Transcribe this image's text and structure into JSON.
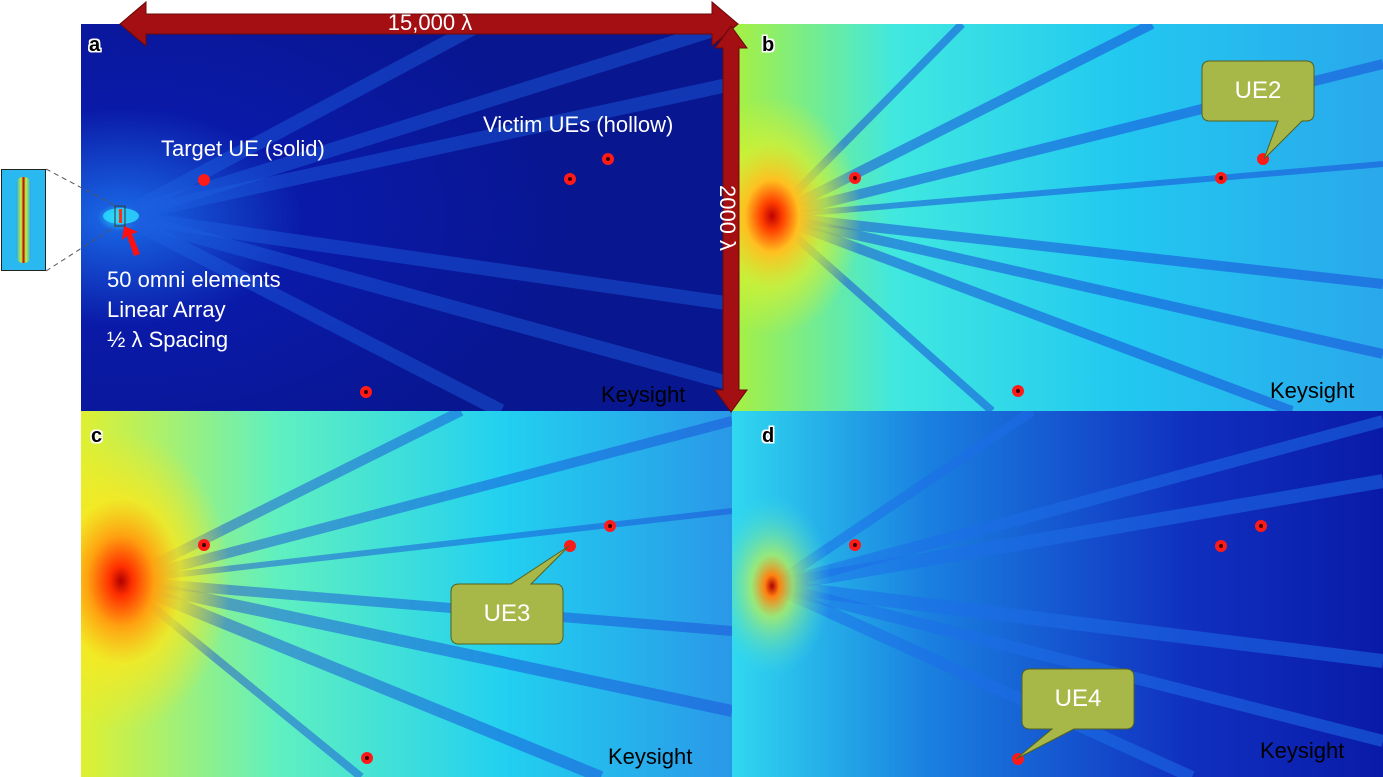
{
  "panels": {
    "a": {
      "label": "a",
      "watermark": "Keysight"
    },
    "b": {
      "label": "b",
      "watermark": "Keysight"
    },
    "c": {
      "label": "c",
      "watermark": "Keysight"
    },
    "d": {
      "label": "d",
      "watermark": "Keysight"
    }
  },
  "dimensions": {
    "horizontal": "15,000 λ",
    "vertical": "2000 λ"
  },
  "annotations": {
    "target": "Target UE (solid)",
    "victims": "Victim UEs (hollow)",
    "array_line1": "50 omni elements",
    "array_line2": "Linear Array",
    "array_line3": "½ λ Spacing"
  },
  "callouts": {
    "ue2": "UE2",
    "ue3": "UE3",
    "ue4": "UE4"
  },
  "colors": {
    "deep_blue": "#0a1aa8",
    "cyan": "#22c8f0",
    "yellow": "#f5e020",
    "red": "#ff1a1a",
    "arrow_red": "#a30f12",
    "callout_olive": "#a8b848"
  }
}
